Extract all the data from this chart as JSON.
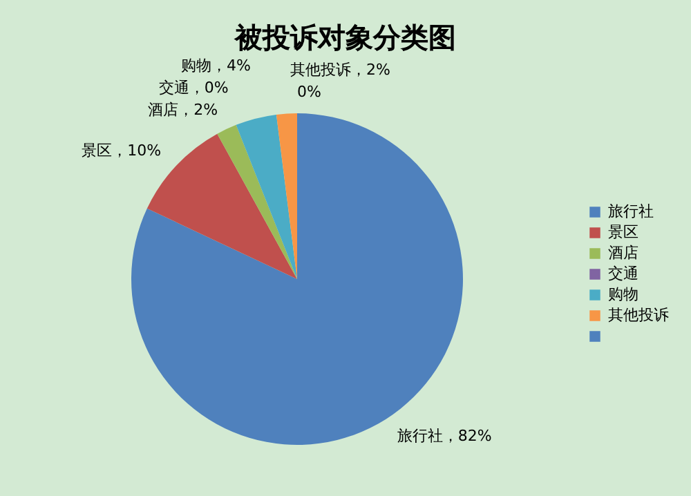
{
  "chart_data": {
    "type": "pie",
    "title": "被投诉对象分类图",
    "categories": [
      "旅行社",
      "景区",
      "酒店",
      "交通",
      "购物",
      "其他投诉",
      null
    ],
    "values": [
      82,
      10,
      2,
      0,
      4,
      2,
      0
    ],
    "colors": [
      "#4f81bd",
      "#c0504d",
      "#9bbb59",
      "#8064a2",
      "#4bacc6",
      "#f79646",
      "#4f81bd"
    ],
    "value_labels": [
      "旅行社，82%",
      "景区，10%",
      "酒店，2%",
      "交通，0%",
      "购物，4%",
      "其他投诉，2%",
      "0%"
    ],
    "legend": "right"
  }
}
